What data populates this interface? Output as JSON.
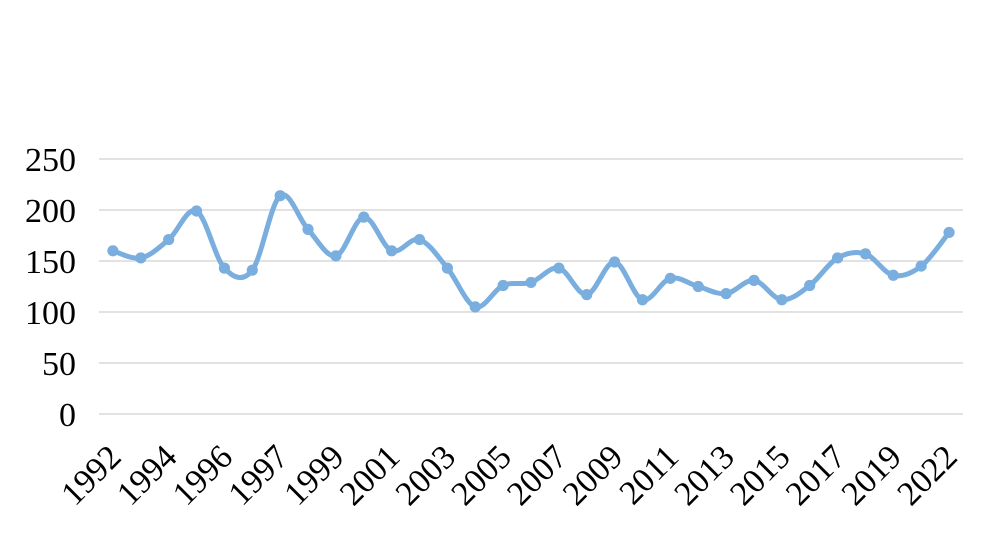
{
  "chart_data": {
    "type": "line",
    "title": "",
    "x_tick_labels": [
      "1992",
      "1994",
      "1996",
      "1997",
      "1999",
      "2001",
      "2003",
      "2005",
      "2007",
      "2009",
      "2011",
      "2013",
      "2015",
      "2017",
      "2019",
      "2022"
    ],
    "x_tick_interval": 2,
    "values": [
      160,
      153,
      171,
      199,
      143,
      141,
      214,
      181,
      155,
      193,
      160,
      171,
      143,
      105,
      126,
      129,
      143,
      117,
      149,
      112,
      133,
      125,
      118,
      131,
      112,
      126,
      153,
      157,
      136,
      145,
      178
    ],
    "y_ticks": [
      0,
      50,
      100,
      150,
      200,
      250
    ],
    "ylim": [
      0,
      250
    ],
    "grid": "horizontal-only",
    "legend": "none",
    "smoothed_line": true,
    "markers": "circle",
    "line_color": "#79AEDE",
    "marker_color": "#79AEDE",
    "gridline_color": "#D9D9D9",
    "axis_label_color": "#000000"
  }
}
